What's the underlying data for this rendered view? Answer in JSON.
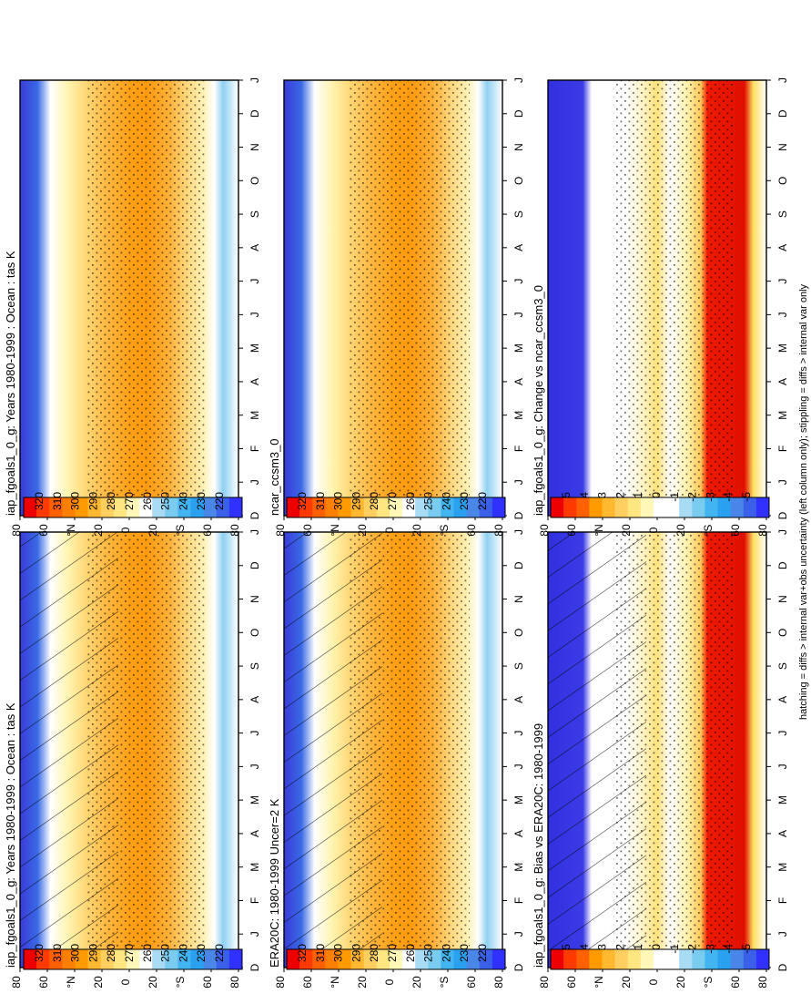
{
  "figure": {
    "footnote": "hatching = diffs > internal var+obs uncertainty (left column only); stippling = diffs > internal var only"
  },
  "months": [
    "D",
    "J",
    "F",
    "M",
    "A",
    "M",
    "J",
    "J",
    "A",
    "S",
    "O",
    "N",
    "D",
    "J"
  ],
  "lat_ticks": [
    "80",
    "60",
    "°N",
    "20",
    "0",
    "20",
    "°S",
    "60",
    "80"
  ],
  "colors": {
    "abs_scale": [
      "#ffffff",
      "#3030ff",
      "#3a5fe8",
      "#4a86e8",
      "#2aa0f0",
      "#42b4f0",
      "#7acbf0",
      "#a8dcf5",
      "#ffffff",
      "#fff7b8",
      "#ffe680",
      "#ffd060",
      "#ffb830",
      "#ff9a00",
      "#ff8000",
      "#ff6000",
      "#ff3a00",
      "#ee0000"
    ],
    "diff_scale": [
      "#3030ff",
      "#3a5fe8",
      "#4a86e8",
      "#2aa0f0",
      "#42b4f0",
      "#7acbf0",
      "#a8dcf5",
      "#ffffff",
      "#ffffff",
      "#fff7b8",
      "#ffe680",
      "#ffd060",
      "#ffb830",
      "#ff9a00",
      "#ff6000",
      "#ee0000"
    ]
  },
  "chart_data": [
    {
      "type": "heatmap",
      "title": "iap_fgoals1_0_g: Years 1980-1999 : Ocean : tas K",
      "x": [
        "D",
        "J",
        "F",
        "M",
        "A",
        "M",
        "J",
        "J",
        "A",
        "S",
        "O",
        "N",
        "D",
        "J"
      ],
      "y_ticks": [
        "80",
        "60",
        "°N",
        "20",
        "0",
        "20",
        "°S",
        "60",
        "80"
      ],
      "colorbar": [
        "320",
        "310",
        "300",
        "290",
        "280",
        "270",
        "260",
        "250",
        "240",
        "230",
        "220"
      ],
      "overlays": [
        "hatching",
        "stippling"
      ],
      "pattern": "absolute"
    },
    {
      "type": "heatmap",
      "title": "iap_fgoals1_0_g: Years 1980-1999 : Ocean : tas K",
      "x": [
        "D",
        "J",
        "F",
        "M",
        "A",
        "M",
        "J",
        "J",
        "A",
        "S",
        "O",
        "N",
        "D",
        "J"
      ],
      "y_ticks": [
        "80",
        "60",
        "°N",
        "20",
        "0",
        "20",
        "°S",
        "60",
        "80"
      ],
      "colorbar": [
        "320",
        "310",
        "300",
        "290",
        "280",
        "270",
        "260",
        "250",
        "240",
        "230",
        "220"
      ],
      "overlays": [
        "stippling"
      ],
      "pattern": "absolute"
    },
    {
      "type": "heatmap",
      "title": "ERA20C: 1980-1999 Uncer=2 K",
      "x": [
        "D",
        "J",
        "F",
        "M",
        "A",
        "M",
        "J",
        "J",
        "A",
        "S",
        "O",
        "N",
        "D",
        "J"
      ],
      "y_ticks": [
        "80",
        "60",
        "°N",
        "20",
        "0",
        "20",
        "°S",
        "60",
        "80"
      ],
      "colorbar": [
        "320",
        "310",
        "300",
        "290",
        "280",
        "270",
        "260",
        "250",
        "240",
        "230",
        "220"
      ],
      "overlays": [
        "hatching",
        "stippling"
      ],
      "pattern": "absolute"
    },
    {
      "type": "heatmap",
      "title": "ncar_ccsm3_0",
      "x": [
        "D",
        "J",
        "F",
        "M",
        "A",
        "M",
        "J",
        "J",
        "A",
        "S",
        "O",
        "N",
        "D",
        "J"
      ],
      "y_ticks": [
        "80",
        "60",
        "°N",
        "20",
        "0",
        "20",
        "°S",
        "60",
        "80"
      ],
      "colorbar": [
        "320",
        "310",
        "300",
        "290",
        "280",
        "270",
        "260",
        "250",
        "240",
        "230",
        "220"
      ],
      "overlays": [
        "stippling"
      ],
      "pattern": "absolute"
    },
    {
      "type": "heatmap",
      "title": "iap_fgoals1_0_g: Bias vs ERA20C: 1980-1999",
      "x": [
        "D",
        "J",
        "F",
        "M",
        "A",
        "M",
        "J",
        "J",
        "A",
        "S",
        "O",
        "N",
        "D",
        "J"
      ],
      "y_ticks": [
        "80",
        "60",
        "°N",
        "20",
        "0",
        "20",
        "°S",
        "60",
        "80"
      ],
      "colorbar": [
        "5",
        "4",
        "3",
        "2",
        "1",
        "0",
        "-1",
        "-2",
        "-3",
        "-4",
        "-5"
      ],
      "overlays": [
        "hatching",
        "stippling"
      ],
      "pattern": "difference"
    },
    {
      "type": "heatmap",
      "title": "iap_fgoals1_0_g: Change vs ncar_ccsm3_0",
      "x": [
        "D",
        "J",
        "F",
        "M",
        "A",
        "M",
        "J",
        "J",
        "A",
        "S",
        "O",
        "N",
        "D",
        "J"
      ],
      "y_ticks": [
        "80",
        "60",
        "°N",
        "20",
        "0",
        "20",
        "°S",
        "60",
        "80"
      ],
      "colorbar": [
        "5",
        "4",
        "3",
        "2",
        "1",
        "0",
        "-1",
        "-2",
        "-3",
        "-4",
        "-5"
      ],
      "overlays": [
        "stippling"
      ],
      "pattern": "difference"
    }
  ]
}
